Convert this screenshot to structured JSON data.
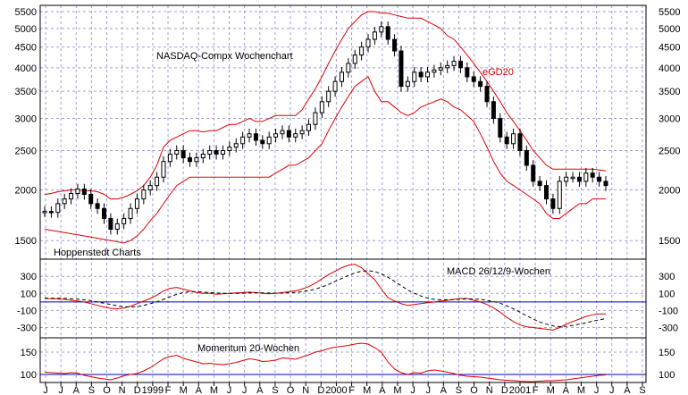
{
  "colors": {
    "background": "#ffffff",
    "grid": "#a0a0d8",
    "price": "#000000",
    "bands": "#e00000",
    "macd": "#e00000",
    "signal": "#000000",
    "momentum": "#e00000",
    "zero_line": "#0000c0"
  },
  "chart_data": [
    {
      "type": "candlestick",
      "title": "NASDAQ-Compx Wochenchart",
      "y_scale": "log",
      "ylim": [
        1350,
        5700
      ],
      "y_ticks": [
        1500,
        2000,
        2500,
        3000,
        3500,
        4000,
        4500,
        5000,
        5500
      ],
      "x_labels": [
        "J",
        "J",
        "A",
        "S",
        "O",
        "N",
        "D",
        "1999",
        "F",
        "M",
        "A",
        "M",
        "J",
        "J",
        "A",
        "S",
        "O",
        "N",
        "D",
        "2000",
        "F",
        "M",
        "A",
        "M",
        "J",
        "J",
        "A",
        "S",
        "O",
        "N",
        "D",
        "2001",
        "F",
        "M",
        "A",
        "M",
        "J",
        "J",
        "A",
        "S"
      ],
      "grid": true,
      "annotations": {
        "source": "Hoppenstedt Charts",
        "band_label": "eGD20"
      },
      "close": [
        1770,
        1760,
        1850,
        1900,
        1960,
        2010,
        1950,
        1850,
        1800,
        1700,
        1600,
        1650,
        1700,
        1800,
        1900,
        2000,
        2050,
        2150,
        2350,
        2450,
        2500,
        2400,
        2350,
        2400,
        2450,
        2500,
        2450,
        2500,
        2550,
        2600,
        2700,
        2750,
        2650,
        2600,
        2700,
        2750,
        2800,
        2700,
        2750,
        2800,
        2900,
        3100,
        3300,
        3500,
        3700,
        3900,
        4100,
        4300,
        4500,
        4700,
        4900,
        5050,
        4700,
        4400,
        3600,
        3700,
        3900,
        3800,
        3900,
        3950,
        4000,
        4050,
        4150,
        4000,
        3800,
        3700,
        3600,
        3300,
        3000,
        2700,
        2600,
        2750,
        2500,
        2300,
        2100,
        2050,
        1900,
        1800,
        2100,
        2150,
        2150,
        2100,
        2200,
        2150,
        2100,
        2050
      ],
      "upper_band": [
        1950,
        1960,
        1980,
        1990,
        2000,
        2000,
        1990,
        1990,
        1980,
        1950,
        1900,
        1900,
        1920,
        1950,
        1990,
        2050,
        2150,
        2300,
        2550,
        2650,
        2700,
        2750,
        2800,
        2800,
        2780,
        2800,
        2800,
        2850,
        2900,
        2900,
        2950,
        3000,
        2950,
        2950,
        3000,
        3050,
        3050,
        3050,
        3050,
        3150,
        3350,
        3550,
        3800,
        4100,
        4400,
        4700,
        5000,
        5200,
        5400,
        5500,
        5500,
        5450,
        5450,
        5400,
        5350,
        5300,
        5300,
        5300,
        5200,
        5100,
        5000,
        4800,
        4700,
        4500,
        4300,
        4100,
        3900,
        3700,
        3500,
        3300,
        3100,
        2950,
        2800,
        2650,
        2500,
        2400,
        2300,
        2250,
        2250,
        2250,
        2250,
        2250,
        2250,
        2250,
        2240,
        2230
      ],
      "lower_band": [
        1600,
        1590,
        1580,
        1570,
        1560,
        1550,
        1540,
        1530,
        1520,
        1510,
        1500,
        1490,
        1480,
        1500,
        1540,
        1600,
        1680,
        1750,
        1850,
        1950,
        2050,
        2100,
        2150,
        2150,
        2150,
        2150,
        2150,
        2150,
        2150,
        2150,
        2150,
        2150,
        2150,
        2150,
        2150,
        2200,
        2250,
        2300,
        2300,
        2350,
        2400,
        2500,
        2600,
        2800,
        3000,
        3200,
        3400,
        3600,
        3700,
        3800,
        3500,
        3300,
        3300,
        3200,
        3100,
        3050,
        3100,
        3200,
        3250,
        3300,
        3350,
        3300,
        3200,
        3150,
        3050,
        2950,
        2750,
        2550,
        2350,
        2200,
        2100,
        2050,
        2000,
        1950,
        1900,
        1850,
        1750,
        1700,
        1700,
        1750,
        1800,
        1850,
        1850,
        1900,
        1900,
        1900
      ]
    },
    {
      "type": "line",
      "title": "MACD 26/12/9-Wochen",
      "ylim": [
        -420,
        480
      ],
      "y_ticks": [
        300,
        100,
        -100,
        -300
      ],
      "grid": true,
      "series": [
        {
          "values": [
            40,
            38,
            35,
            30,
            20,
            10,
            0,
            -20,
            -40,
            -60,
            -75,
            -80,
            -70,
            -50,
            -20,
            10,
            40,
            80,
            130,
            160,
            170,
            150,
            130,
            110,
            100,
            100,
            90,
            95,
            100,
            105,
            110,
            115,
            110,
            100,
            95,
            100,
            110,
            120,
            130,
            150,
            180,
            220,
            270,
            320,
            360,
            400,
            430,
            440,
            400,
            330,
            260,
            150,
            50,
            10,
            -20,
            -40,
            -30,
            -20,
            -10,
            0,
            10,
            20,
            30,
            40,
            40,
            20,
            0,
            -30,
            -70,
            -120,
            -180,
            -230,
            -270,
            -290,
            -300,
            -310,
            -320,
            -330,
            -300,
            -260,
            -230,
            -200,
            -170,
            -150,
            -140,
            -140
          ]
        },
        {
          "values": [
            45,
            44,
            43,
            42,
            38,
            32,
            25,
            15,
            0,
            -15,
            -30,
            -45,
            -55,
            -60,
            -55,
            -40,
            -20,
            0,
            30,
            60,
            90,
            110,
            120,
            120,
            115,
            110,
            105,
            100,
            100,
            100,
            102,
            105,
            107,
            106,
            104,
            103,
            104,
            107,
            112,
            120,
            132,
            150,
            175,
            205,
            240,
            275,
            310,
            340,
            360,
            365,
            355,
            330,
            290,
            240,
            190,
            140,
            100,
            70,
            45,
            30,
            25,
            25,
            28,
            32,
            35,
            35,
            30,
            20,
            5,
            -15,
            -45,
            -80,
            -120,
            -160,
            -200,
            -235,
            -260,
            -280,
            -290,
            -285,
            -275,
            -260,
            -245,
            -225,
            -210,
            -195
          ]
        }
      ]
    },
    {
      "type": "line",
      "title": "Momentum 20-Wochen",
      "ylim": [
        82,
        182
      ],
      "y_ticks": [
        150,
        100
      ],
      "grid": true,
      "series": [
        {
          "values": [
            105,
            104,
            103,
            102,
            104,
            103,
            98,
            95,
            92,
            90,
            88,
            92,
            97,
            100,
            102,
            108,
            115,
            125,
            135,
            140,
            143,
            136,
            132,
            128,
            124,
            125,
            123,
            122,
            124,
            127,
            131,
            135,
            133,
            129,
            130,
            132,
            137,
            136,
            134,
            139,
            144,
            150,
            153,
            158,
            161,
            163,
            165,
            168,
            170,
            168,
            160,
            150,
            128,
            112,
            104,
            100,
            104,
            103,
            108,
            110,
            108,
            105,
            102,
            98,
            96,
            95,
            94,
            92,
            90,
            88,
            87,
            86,
            85,
            84,
            84,
            85,
            86,
            86,
            87,
            88,
            90,
            92,
            94,
            96,
            98,
            99
          ]
        }
      ]
    }
  ],
  "x_axis": {
    "labels": [
      "J",
      "J",
      "A",
      "S",
      "O",
      "N",
      "D",
      "1999",
      "F",
      "M",
      "A",
      "M",
      "J",
      "J",
      "A",
      "S",
      "O",
      "N",
      "D",
      "2000",
      "F",
      "M",
      "A",
      "M",
      "J",
      "J",
      "A",
      "S",
      "O",
      "N",
      "D",
      "2001",
      "F",
      "M",
      "A",
      "M",
      "J",
      "J",
      "A",
      "S"
    ]
  }
}
